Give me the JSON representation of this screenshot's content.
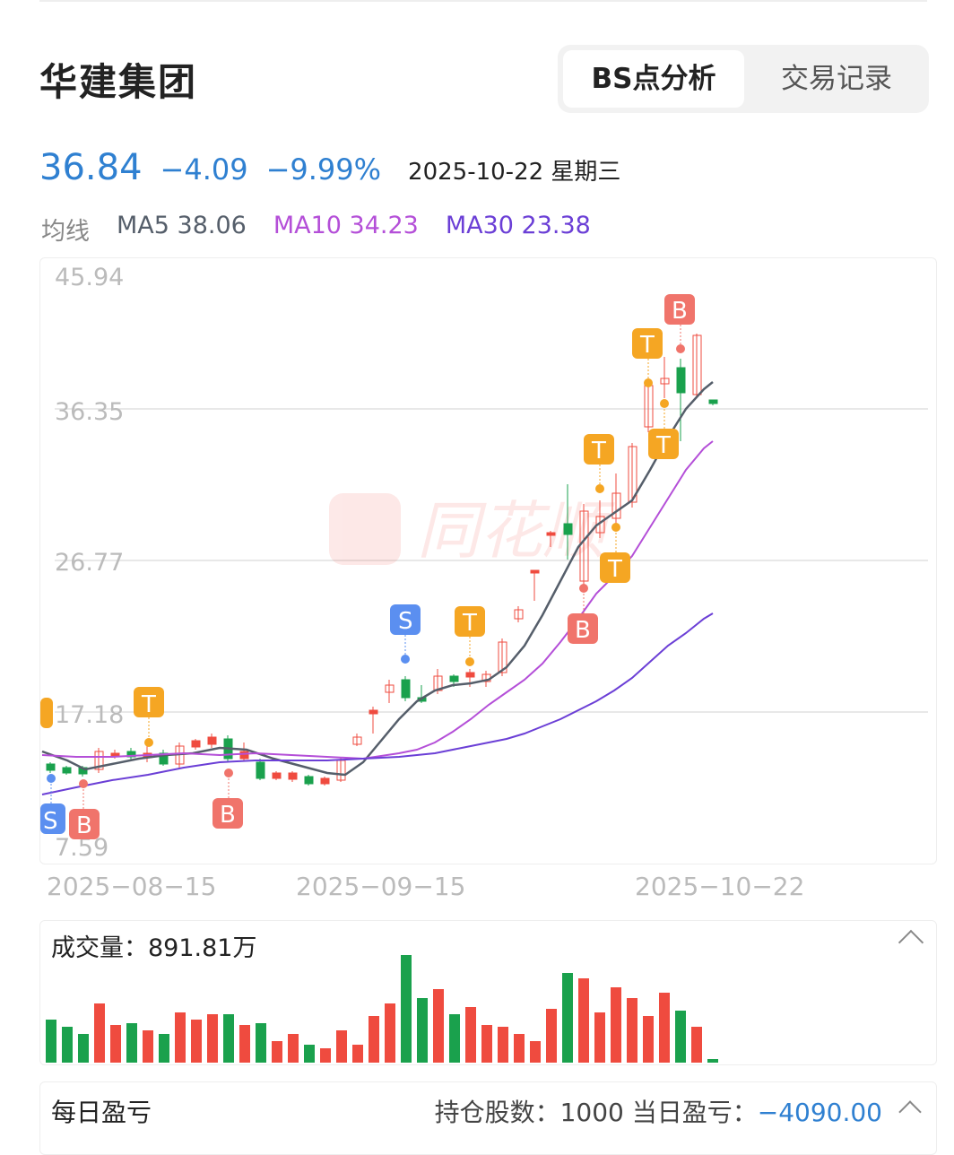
{
  "header": {
    "stock_name": "华建集团",
    "tabs": [
      {
        "label": "BS点分析",
        "active": true
      },
      {
        "label": "交易记录",
        "active": false
      }
    ]
  },
  "quote": {
    "price": "36.84",
    "change": "−4.09",
    "change_pct": "−9.99%",
    "date": "2025-10-22 星期三",
    "color": "#2f80d1"
  },
  "ma": {
    "label": "均线",
    "ma5": "MA5 38.06",
    "ma10": "MA10 34.23",
    "ma30": "MA30 23.38"
  },
  "chart": {
    "watermark": "同花顺",
    "y_ticks": [
      "45.94",
      "36.35",
      "26.77",
      "17.18",
      "7.59"
    ],
    "x_ticks": [
      "2025−08−15",
      "2025−09−15",
      "2025−10−22"
    ]
  },
  "colors": {
    "up": "#ef4b3f",
    "down": "#1aa14d",
    "ma5": "#555e6a",
    "ma10": "#b44fd8",
    "ma30": "#6b3fd6",
    "t": "#f5a623",
    "b": "#f0746b",
    "s": "#5b8ff0"
  },
  "volume": {
    "label": "成交量：891.81万"
  },
  "pnl": {
    "label": "每日盈亏",
    "shares": "持仓股数：1000 当日盈亏：",
    "value": "−4090.00"
  }
}
